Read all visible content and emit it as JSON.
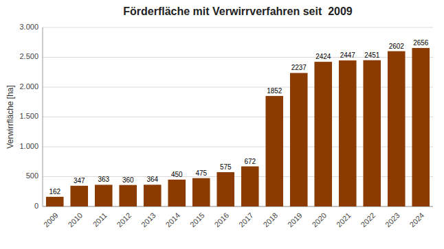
{
  "chart_data": {
    "type": "bar",
    "title": "Förderfläche mit Verwirrverfahren seit  2009",
    "ylabel": "Verwirrfläche [ha]",
    "categories": [
      "2009",
      "2010",
      "2011",
      "2012",
      "2013",
      "2014",
      "2015",
      "2016",
      "2017",
      "2018",
      "2019",
      "2020",
      "2021",
      "2022",
      "2023",
      "2024"
    ],
    "values": [
      162,
      347,
      363,
      360,
      364,
      450,
      475,
      575,
      672,
      1852,
      2237,
      2424,
      2447,
      2451,
      2602,
      2656
    ],
    "color": "#8B3A00",
    "ylim": [
      0,
      3000
    ],
    "yticks": [
      0,
      500,
      {
        "value": 1000,
        "label": "1.000"
      },
      {
        "value": 1500,
        "label": "1.500"
      },
      {
        "value": 2000,
        "label": "2.000"
      },
      {
        "value": 2500,
        "label": "2.500"
      },
      {
        "value": 3000,
        "label": "3.000"
      }
    ],
    "grid": true,
    "data_labels": true
  }
}
